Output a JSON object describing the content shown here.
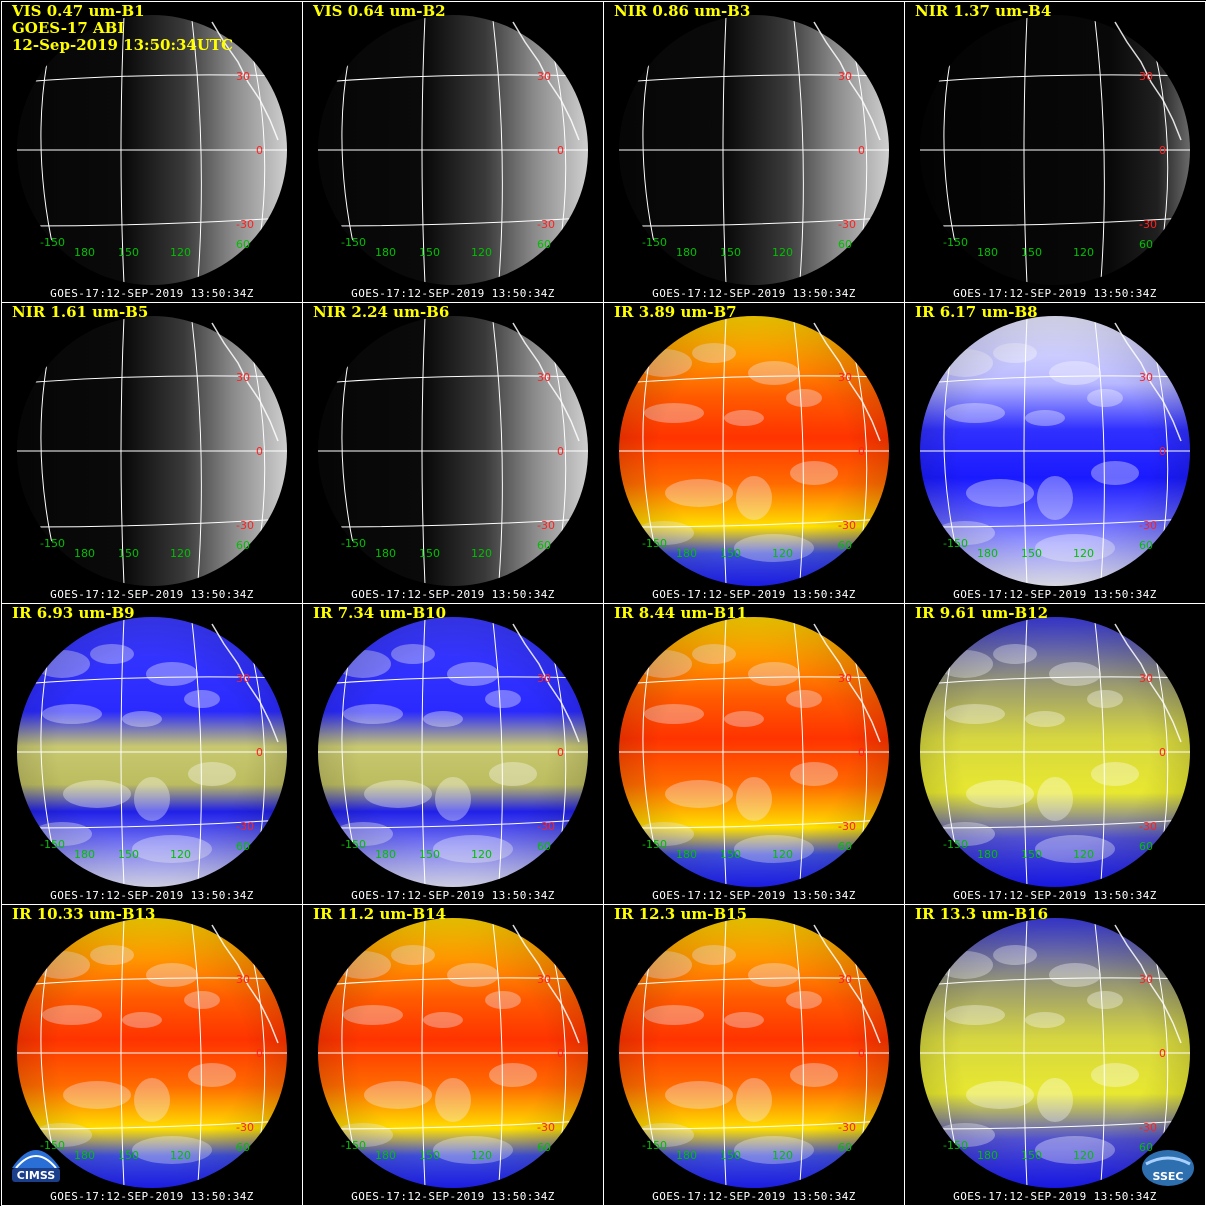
{
  "header": {
    "satellite_instrument": "GOES-17 ABI",
    "timestamp": "12-Sep-2019 13:50:34UTC"
  },
  "footer_label": "GOES-17:12-SEP-2019  13:50:34Z",
  "grid_labels": {
    "lat_north": "30",
    "lat_equator": "0",
    "lat_south": "-30",
    "lon_west": "-150",
    "lon_180": "180",
    "lon_150": "150",
    "lon_120": "120",
    "lon_60": "60"
  },
  "logos": {
    "left": "CIMSS",
    "right": "SSEC"
  },
  "colors": {
    "title": "#ffff00",
    "grid_lines": "#ffffff",
    "lat_label": "#ff2020",
    "lon_label": "#00c000",
    "background": "#000000"
  },
  "panels": [
    {
      "title": "VIS 0.47 um-B1",
      "palette": "vis-bright"
    },
    {
      "title": "VIS 0.64 um-B2",
      "palette": "vis-bright"
    },
    {
      "title": "NIR 0.86 um-B3",
      "palette": "vis-bright"
    },
    {
      "title": "NIR 1.37 um-B4",
      "palette": "vis-dim"
    },
    {
      "title": "NIR 1.61 um-B5",
      "palette": "vis-bright"
    },
    {
      "title": "NIR 2.24 um-B6",
      "palette": "vis-bright"
    },
    {
      "title": "IR 3.89 um-B7",
      "palette": "ir-warm"
    },
    {
      "title": "IR 6.17 um-B8",
      "palette": "wv-white"
    },
    {
      "title": "IR 6.93 um-B9",
      "palette": "wv-blue"
    },
    {
      "title": "IR 7.34 um-B10",
      "palette": "wv-blue"
    },
    {
      "title": "IR 8.44 um-B11",
      "palette": "ir-warm"
    },
    {
      "title": "IR 9.61 um-B12",
      "palette": "wv-olive"
    },
    {
      "title": "IR 10.33 um-B13",
      "palette": "ir-warm"
    },
    {
      "title": "IR 11.2 um-B14",
      "palette": "ir-warm"
    },
    {
      "title": "IR 12.3 um-B15",
      "palette": "ir-warm"
    },
    {
      "title": "IR 13.3 um-B16",
      "palette": "wv-olive"
    }
  ]
}
